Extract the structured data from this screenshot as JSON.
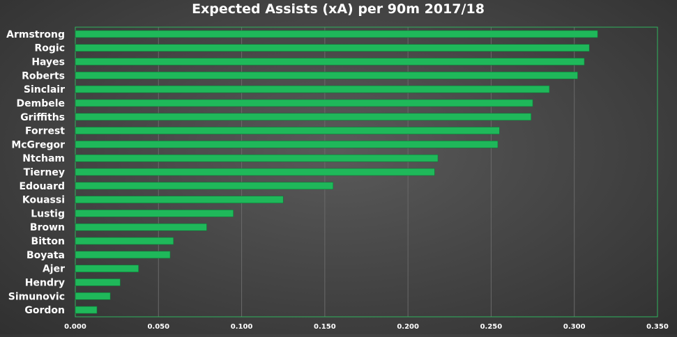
{
  "chart_data": {
    "type": "bar",
    "orientation": "horizontal",
    "title": "Expected Assists (xA) per 90m 2017/18",
    "xlabel": "",
    "ylabel": "",
    "categories": [
      "Armstrong",
      "Rogic",
      "Hayes",
      "Roberts",
      "Sinclair",
      "Dembele",
      "Griffiths",
      "Forrest",
      "McGregor",
      "Ntcham",
      "Tierney",
      "Edouard",
      "Kouassi",
      "Lustig",
      "Brown",
      "Bitton",
      "Boyata",
      "Ajer",
      "Hendry",
      "Simunovic",
      "Gordon"
    ],
    "values": [
      0.314,
      0.309,
      0.306,
      0.302,
      0.285,
      0.275,
      0.274,
      0.255,
      0.254,
      0.218,
      0.216,
      0.155,
      0.125,
      0.095,
      0.079,
      0.059,
      0.057,
      0.038,
      0.027,
      0.021,
      0.013
    ],
    "xlim": [
      0,
      0.35
    ],
    "ticks": [
      "0.000",
      "0.050",
      "0.100",
      "0.150",
      "0.200",
      "0.250",
      "0.300",
      "0.350"
    ],
    "tick_values": [
      0,
      0.05,
      0.1,
      0.15,
      0.2,
      0.25,
      0.3,
      0.35
    ],
    "grid": true,
    "legend": "none",
    "colors": {
      "bar": "#1fb85a",
      "bar_edge": "#0e7a37",
      "frame": "#2fb45e",
      "grid": "#6a6a6a",
      "text": "#ffffff"
    }
  }
}
